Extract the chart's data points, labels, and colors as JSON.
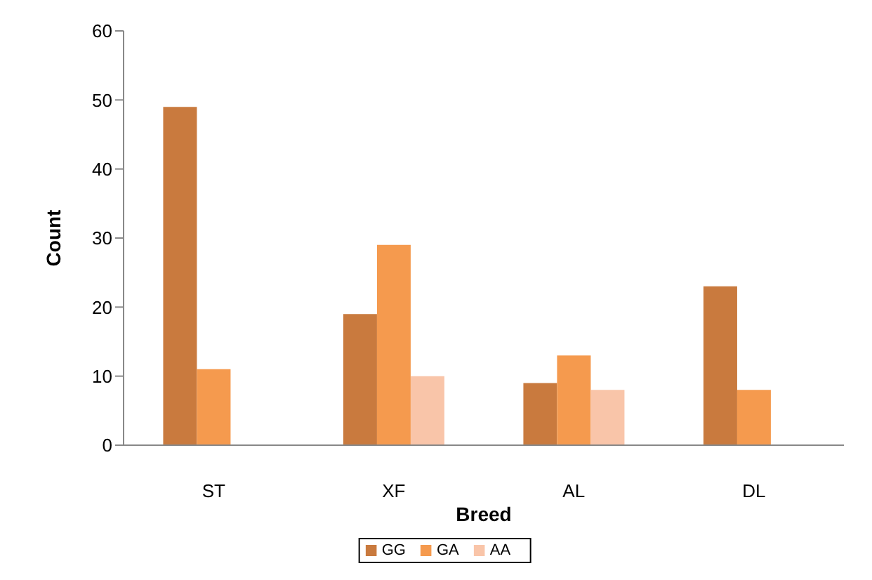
{
  "chart_data": {
    "type": "bar",
    "xlabel": "Breed",
    "ylabel": "Count",
    "categories": [
      "ST",
      "XF",
      "AL",
      "DL"
    ],
    "series": [
      {
        "name": "GG",
        "color": "#c97a3e",
        "values": [
          49,
          19,
          9,
          23
        ]
      },
      {
        "name": "GA",
        "color": "#f59a4e",
        "values": [
          11,
          29,
          13,
          8
        ]
      },
      {
        "name": "AA",
        "color": "#f9c5a9",
        "values": [
          null,
          10,
          8,
          null
        ]
      }
    ],
    "ylim": [
      0,
      60
    ],
    "yticks": [
      0,
      10,
      20,
      30,
      40,
      50,
      60
    ],
    "grid": false,
    "legend": "bottom"
  }
}
